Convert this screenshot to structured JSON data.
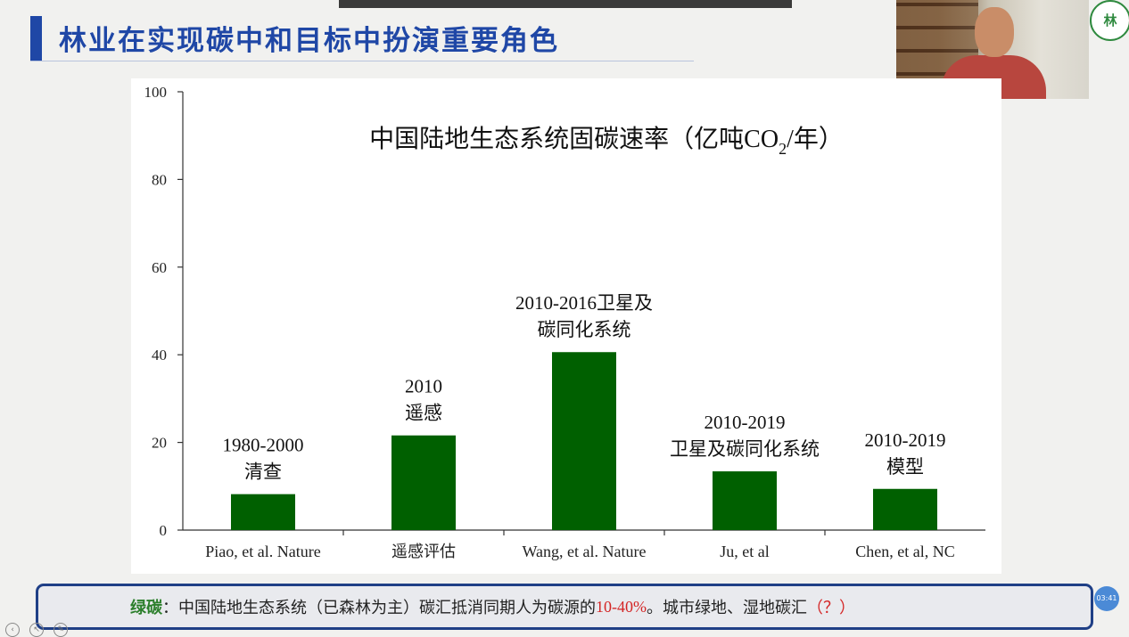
{
  "slide_title": "林业在实现碳中和目标中扮演重要角色",
  "logo_text": "林",
  "chart_data": {
    "type": "bar",
    "title": "中国陆地生态系统固碳速率（亿吨CO",
    "title_sub": "2",
    "title_tail": "/年）",
    "categories": [
      "Piao, et al. Nature",
      "遥感评估",
      "Wang, et al. Nature",
      "Ju, et al",
      "Chen, et al, NC"
    ],
    "values": [
      8.2,
      21.6,
      40.6,
      13.4,
      9.4
    ],
    "bar_labels": [
      [
        "1980-2000",
        "清查"
      ],
      [
        "2010",
        "遥感"
      ],
      [
        "2010-2016卫星及",
        "碳同化系统"
      ],
      [
        "2010-2019",
        "卫星及碳同化系统"
      ],
      [
        "2010-2019",
        "模型"
      ]
    ],
    "ylim": [
      0,
      100
    ],
    "yticks": [
      0,
      20,
      40,
      60,
      80,
      100
    ],
    "bar_color": "#006000",
    "grid": false
  },
  "note": {
    "label": "绿碳",
    "sep": "：",
    "text_a": "中国陆地生态系统（已森林为主）碳汇抵消同期人为碳源的",
    "highlight": "10-40%",
    "text_b": "。城市绿地、湿地碳汇",
    "tail": "（？）"
  },
  "timer_text": "03:41",
  "colors": {
    "title": "#1f47a6",
    "label_green": "#2c7f2c",
    "highlight_red": "#d42525"
  }
}
